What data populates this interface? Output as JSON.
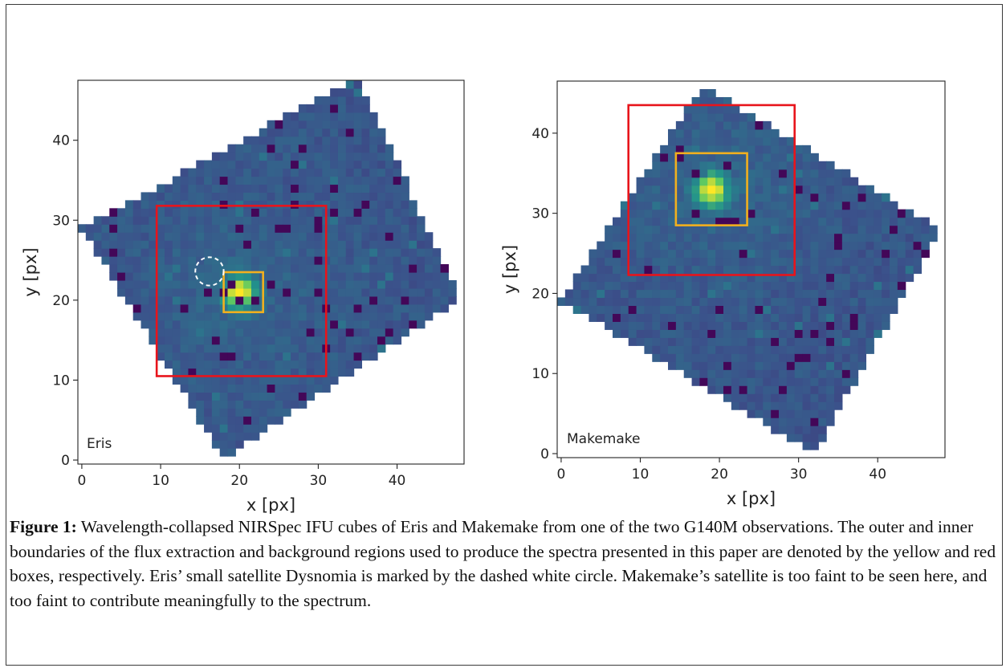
{
  "figure": {
    "caption_label": "Figure 1:",
    "caption_text": " Wavelength-collapsed NIRSpec IFU cubes of Eris and Makemake from one of the two G140M observations.  The outer and inner boundaries of the flux extraction and background regions used to produce the spectra presented in this paper are denoted by the yellow and red boxes, respectively.  Eris’ small satellite Dysnomia is marked by the dashed white circle.  Makemake’s satellite is too faint to be seen here, and too faint to contribute meaningfully to the spectrum."
  },
  "chart_data": [
    {
      "type": "heatmap",
      "panel_label": "Eris",
      "xlabel": "x [px]",
      "ylabel": "y [px]",
      "xlim": [
        -0.5,
        48.5
      ],
      "ylim": [
        -0.5,
        47.5
      ],
      "xticks": [
        0,
        10,
        20,
        30,
        40
      ],
      "yticks": [
        0,
        10,
        20,
        30,
        40
      ],
      "footprint_corners": [
        [
          0,
          29
        ],
        [
          35,
          48
        ],
        [
          48,
          20
        ],
        [
          18,
          0
        ]
      ],
      "peak": [
        20,
        21
      ],
      "colormap": "viridis",
      "extraction_box": {
        "x": [
          18,
          23
        ],
        "y": [
          18.5,
          23.5
        ],
        "color": "#f2b01e"
      },
      "background_box": {
        "x": [
          9.5,
          31
        ],
        "y": [
          10.5,
          31.8
        ],
        "color": "#e8141b"
      },
      "satellite_marker": {
        "name": "Dysnomia",
        "center": [
          16.2,
          23.6
        ],
        "radius": 1.8,
        "style": "dashed",
        "color": "#ffffff"
      }
    },
    {
      "type": "heatmap",
      "panel_label": "Makemake",
      "xlabel": "x [px]",
      "ylabel": "y [px]",
      "xlim": [
        -0.5,
        48.5
      ],
      "ylim": [
        -0.5,
        46.5
      ],
      "xticks": [
        0,
        10,
        20,
        30,
        40
      ],
      "yticks": [
        0,
        10,
        20,
        30,
        40
      ],
      "footprint_corners": [
        [
          0,
          19
        ],
        [
          18,
          46
        ],
        [
          48,
          28
        ],
        [
          32,
          0
        ]
      ],
      "peak": [
        19,
        33
      ],
      "colormap": "viridis",
      "extraction_box": {
        "x": [
          14.5,
          23.5
        ],
        "y": [
          28.5,
          37.5
        ],
        "color": "#f2b01e"
      },
      "background_box": {
        "x": [
          8.5,
          29.5
        ],
        "y": [
          22.3,
          43.5
        ],
        "color": "#e8141b"
      }
    }
  ]
}
